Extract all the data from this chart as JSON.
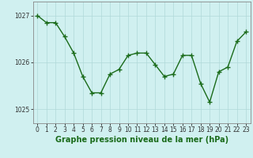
{
  "x": [
    0,
    1,
    2,
    3,
    4,
    5,
    6,
    7,
    8,
    9,
    10,
    11,
    12,
    13,
    14,
    15,
    16,
    17,
    18,
    19,
    20,
    21,
    22,
    23
  ],
  "y": [
    1027.0,
    1026.85,
    1026.85,
    1026.55,
    1026.2,
    1025.7,
    1025.35,
    1025.35,
    1025.75,
    1025.85,
    1026.15,
    1026.2,
    1026.2,
    1025.95,
    1025.7,
    1025.75,
    1026.15,
    1026.15,
    1025.55,
    1025.15,
    1025.8,
    1025.9,
    1026.45,
    1026.65
  ],
  "line_color": "#1a6b1a",
  "marker": "+",
  "marker_size": 4,
  "line_width": 1.0,
  "bg_color": "#d0f0f0",
  "grid_color": "#b0d8d8",
  "xlabel": "Graphe pression niveau de la mer (hPa)",
  "xlabel_color": "#1a6b1a",
  "xlabel_fontsize": 7,
  "ylabel_ticks": [
    1025,
    1026,
    1027
  ],
  "ylim": [
    1024.7,
    1027.3
  ],
  "xlim": [
    -0.5,
    23.5
  ],
  "tick_color": "#333333",
  "tick_fontsize": 5.5,
  "spine_color": "#888888"
}
